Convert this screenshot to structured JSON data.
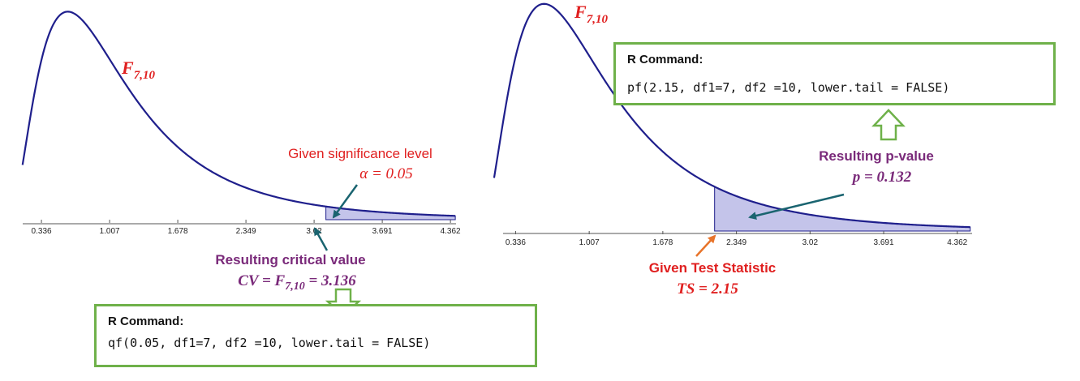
{
  "left_panel": {
    "distribution_label": {
      "base": "F",
      "sub": "7,10"
    },
    "tick_labels": [
      "0.336",
      "1.007",
      "1.678",
      "2.349",
      "3.02",
      "3.691",
      "4.362"
    ],
    "annotation_top_line1": "Given significance level",
    "annotation_top_line2": "α = 0.05",
    "annotation_bottom_line1": "Resulting critical value",
    "annotation_bottom_line2": "CV = F",
    "annotation_bottom_sub": "7,10",
    "annotation_bottom_tail": " = 3.136",
    "r_command_title": "R Command:",
    "r_command_code": "qf(0.05, df1=7, df2 =10, lower.tail = FALSE)",
    "critical_value": 3.136
  },
  "right_panel": {
    "distribution_label": {
      "base": "F",
      "sub": "7,10"
    },
    "tick_labels": [
      "0.336",
      "1.007",
      "1.678",
      "2.349",
      "3.02",
      "3.691",
      "4.362"
    ],
    "annotation_top_line1": "Resulting  p-value",
    "annotation_top_line2": "p = 0.132",
    "annotation_bottom_line1": "Given Test Statistic",
    "annotation_bottom_line2": "TS = 2.15",
    "r_command_title": "R Command:",
    "r_command_code": "pf(2.15, df1=7, df2 =10, lower.tail = FALSE)",
    "test_statistic": 2.15
  },
  "colors": {
    "curve": "#1f1f8c",
    "shade": "#c4c4ea",
    "red_text": "#e01f1f",
    "purple_text": "#7a2a7a",
    "teal_arrow": "#1a6470",
    "orange_arrow": "#e8742a",
    "green_box": "#6fb14a"
  }
}
